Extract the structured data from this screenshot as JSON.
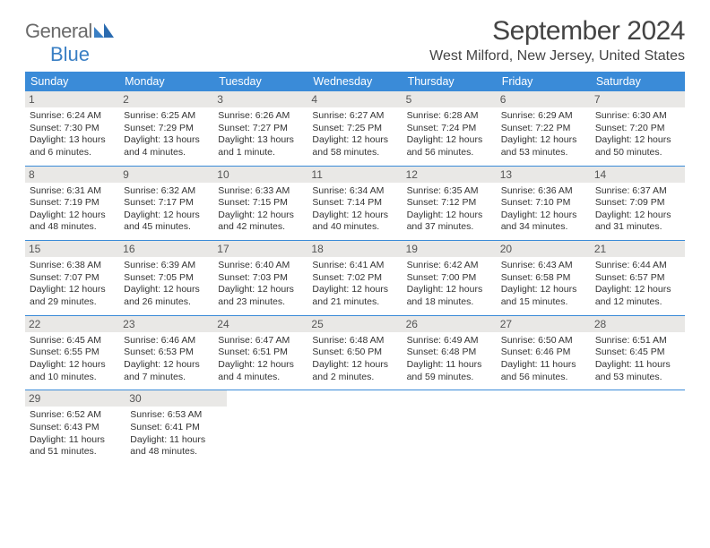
{
  "logo": {
    "general": "General",
    "blue": "Blue"
  },
  "title": "September 2024",
  "location": "West Milford, New Jersey, United States",
  "colors": {
    "header_bg": "#3a8bd8",
    "header_text": "#ffffff",
    "daynum_bg": "#e9e8e6",
    "border": "#3a8bd8",
    "text": "#333333",
    "logo_gray": "#6a6a6a",
    "logo_blue": "#3a7fc4"
  },
  "day_names": [
    "Sunday",
    "Monday",
    "Tuesday",
    "Wednesday",
    "Thursday",
    "Friday",
    "Saturday"
  ],
  "weeks": [
    [
      {
        "n": "1",
        "sr": "Sunrise: 6:24 AM",
        "ss": "Sunset: 7:30 PM",
        "dl": "Daylight: 13 hours and 6 minutes."
      },
      {
        "n": "2",
        "sr": "Sunrise: 6:25 AM",
        "ss": "Sunset: 7:29 PM",
        "dl": "Daylight: 13 hours and 4 minutes."
      },
      {
        "n": "3",
        "sr": "Sunrise: 6:26 AM",
        "ss": "Sunset: 7:27 PM",
        "dl": "Daylight: 13 hours and 1 minute."
      },
      {
        "n": "4",
        "sr": "Sunrise: 6:27 AM",
        "ss": "Sunset: 7:25 PM",
        "dl": "Daylight: 12 hours and 58 minutes."
      },
      {
        "n": "5",
        "sr": "Sunrise: 6:28 AM",
        "ss": "Sunset: 7:24 PM",
        "dl": "Daylight: 12 hours and 56 minutes."
      },
      {
        "n": "6",
        "sr": "Sunrise: 6:29 AM",
        "ss": "Sunset: 7:22 PM",
        "dl": "Daylight: 12 hours and 53 minutes."
      },
      {
        "n": "7",
        "sr": "Sunrise: 6:30 AM",
        "ss": "Sunset: 7:20 PM",
        "dl": "Daylight: 12 hours and 50 minutes."
      }
    ],
    [
      {
        "n": "8",
        "sr": "Sunrise: 6:31 AM",
        "ss": "Sunset: 7:19 PM",
        "dl": "Daylight: 12 hours and 48 minutes."
      },
      {
        "n": "9",
        "sr": "Sunrise: 6:32 AM",
        "ss": "Sunset: 7:17 PM",
        "dl": "Daylight: 12 hours and 45 minutes."
      },
      {
        "n": "10",
        "sr": "Sunrise: 6:33 AM",
        "ss": "Sunset: 7:15 PM",
        "dl": "Daylight: 12 hours and 42 minutes."
      },
      {
        "n": "11",
        "sr": "Sunrise: 6:34 AM",
        "ss": "Sunset: 7:14 PM",
        "dl": "Daylight: 12 hours and 40 minutes."
      },
      {
        "n": "12",
        "sr": "Sunrise: 6:35 AM",
        "ss": "Sunset: 7:12 PM",
        "dl": "Daylight: 12 hours and 37 minutes."
      },
      {
        "n": "13",
        "sr": "Sunrise: 6:36 AM",
        "ss": "Sunset: 7:10 PM",
        "dl": "Daylight: 12 hours and 34 minutes."
      },
      {
        "n": "14",
        "sr": "Sunrise: 6:37 AM",
        "ss": "Sunset: 7:09 PM",
        "dl": "Daylight: 12 hours and 31 minutes."
      }
    ],
    [
      {
        "n": "15",
        "sr": "Sunrise: 6:38 AM",
        "ss": "Sunset: 7:07 PM",
        "dl": "Daylight: 12 hours and 29 minutes."
      },
      {
        "n": "16",
        "sr": "Sunrise: 6:39 AM",
        "ss": "Sunset: 7:05 PM",
        "dl": "Daylight: 12 hours and 26 minutes."
      },
      {
        "n": "17",
        "sr": "Sunrise: 6:40 AM",
        "ss": "Sunset: 7:03 PM",
        "dl": "Daylight: 12 hours and 23 minutes."
      },
      {
        "n": "18",
        "sr": "Sunrise: 6:41 AM",
        "ss": "Sunset: 7:02 PM",
        "dl": "Daylight: 12 hours and 21 minutes."
      },
      {
        "n": "19",
        "sr": "Sunrise: 6:42 AM",
        "ss": "Sunset: 7:00 PM",
        "dl": "Daylight: 12 hours and 18 minutes."
      },
      {
        "n": "20",
        "sr": "Sunrise: 6:43 AM",
        "ss": "Sunset: 6:58 PM",
        "dl": "Daylight: 12 hours and 15 minutes."
      },
      {
        "n": "21",
        "sr": "Sunrise: 6:44 AM",
        "ss": "Sunset: 6:57 PM",
        "dl": "Daylight: 12 hours and 12 minutes."
      }
    ],
    [
      {
        "n": "22",
        "sr": "Sunrise: 6:45 AM",
        "ss": "Sunset: 6:55 PM",
        "dl": "Daylight: 12 hours and 10 minutes."
      },
      {
        "n": "23",
        "sr": "Sunrise: 6:46 AM",
        "ss": "Sunset: 6:53 PM",
        "dl": "Daylight: 12 hours and 7 minutes."
      },
      {
        "n": "24",
        "sr": "Sunrise: 6:47 AM",
        "ss": "Sunset: 6:51 PM",
        "dl": "Daylight: 12 hours and 4 minutes."
      },
      {
        "n": "25",
        "sr": "Sunrise: 6:48 AM",
        "ss": "Sunset: 6:50 PM",
        "dl": "Daylight: 12 hours and 2 minutes."
      },
      {
        "n": "26",
        "sr": "Sunrise: 6:49 AM",
        "ss": "Sunset: 6:48 PM",
        "dl": "Daylight: 11 hours and 59 minutes."
      },
      {
        "n": "27",
        "sr": "Sunrise: 6:50 AM",
        "ss": "Sunset: 6:46 PM",
        "dl": "Daylight: 11 hours and 56 minutes."
      },
      {
        "n": "28",
        "sr": "Sunrise: 6:51 AM",
        "ss": "Sunset: 6:45 PM",
        "dl": "Daylight: 11 hours and 53 minutes."
      }
    ],
    [
      {
        "n": "29",
        "sr": "Sunrise: 6:52 AM",
        "ss": "Sunset: 6:43 PM",
        "dl": "Daylight: 11 hours and 51 minutes."
      },
      {
        "n": "30",
        "sr": "Sunrise: 6:53 AM",
        "ss": "Sunset: 6:41 PM",
        "dl": "Daylight: 11 hours and 48 minutes."
      },
      null,
      null,
      null,
      null,
      null
    ]
  ]
}
